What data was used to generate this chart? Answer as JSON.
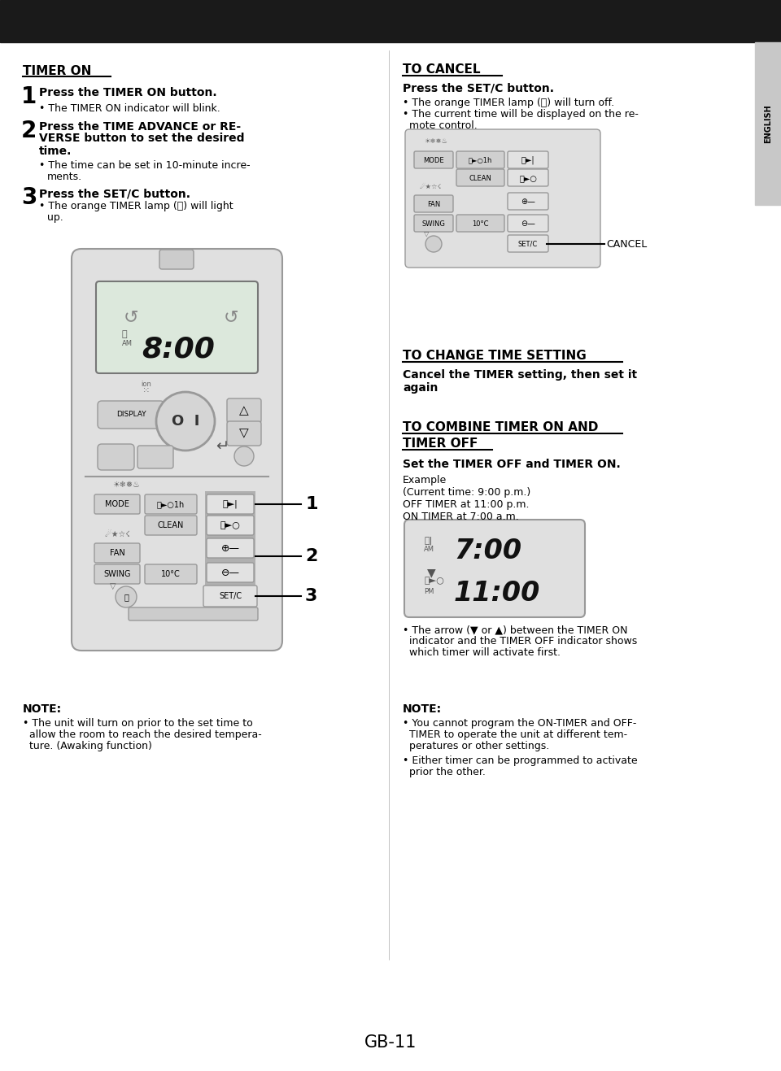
{
  "bg_color": "#ffffff",
  "header_color": "#1a1a1a",
  "text_color": "#000000",
  "page_number": "GB-11",
  "left_title": "TIMER ON",
  "right_cancel_title": "TO CANCEL",
  "right_change_title": "TO CHANGE TIME SETTING",
  "right_combine_title1": "TO COMBINE TIMER ON AND",
  "right_combine_title2": "TIMER OFF",
  "english_tab_text": "ENGLISH",
  "note_left_title": "NOTE:",
  "note_left_bullets": [
    "The unit will turn on prior to the set time to allow the room to reach the desired tempera- ture. (Awaking function)"
  ],
  "note_right_title": "NOTE:",
  "note_right_bullets": [
    "You cannot program the ON-TIMER and OFF- TIMER to operate the unit at different tem- peratures or other settings.",
    "Either timer can be programmed to activate prior the other."
  ]
}
